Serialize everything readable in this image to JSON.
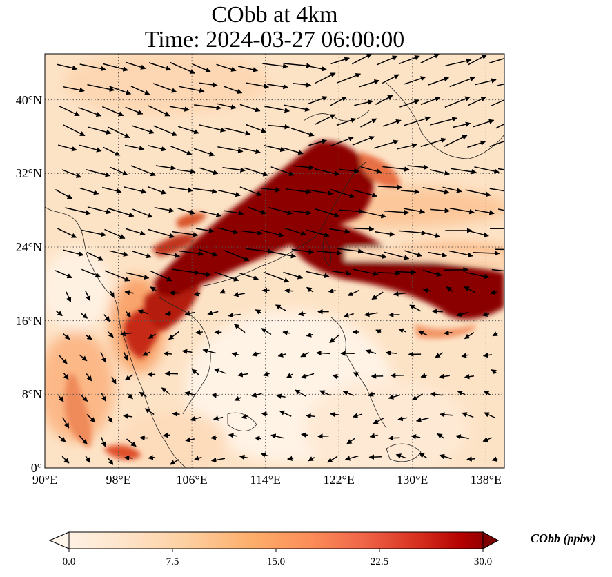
{
  "title_line1": "CObb at 4km",
  "title_line2": "Time: 2024-03-27 06:00:00",
  "map": {
    "lon_range": [
      90,
      140
    ],
    "lat_range": [
      0,
      45
    ],
    "grid": true,
    "lon_ticks": [
      {
        "value": 90,
        "label": "90°E"
      },
      {
        "value": 98,
        "label": "98°E"
      },
      {
        "value": 106,
        "label": "106°E"
      },
      {
        "value": 114,
        "label": "114°E"
      },
      {
        "value": 122,
        "label": "122°E"
      },
      {
        "value": 130,
        "label": "130°E"
      },
      {
        "value": 138,
        "label": "138°E"
      }
    ],
    "lat_ticks": [
      {
        "value": 0,
        "label": "0°"
      },
      {
        "value": 8,
        "label": "8°N"
      },
      {
        "value": 16,
        "label": "16°N"
      },
      {
        "value": 24,
        "label": "24°N"
      },
      {
        "value": 32,
        "label": "32°N"
      },
      {
        "value": 40,
        "label": "40°N"
      }
    ],
    "field": "CObb concentration (ppbv)",
    "overlay": "wind vectors"
  },
  "colorbar": {
    "label": "CObb (ppbv)",
    "min": 0.0,
    "max": 30.0,
    "ticks": [
      "0.0",
      "7.5",
      "15.0",
      "22.5",
      "30.0"
    ],
    "extend": "both",
    "colors": [
      "#fff5eb",
      "#fee6ce",
      "#fdd0a2",
      "#fdae6b",
      "#fd8d3c",
      "#f16913",
      "#d94801",
      "#a63603",
      "#7f0000"
    ]
  }
}
